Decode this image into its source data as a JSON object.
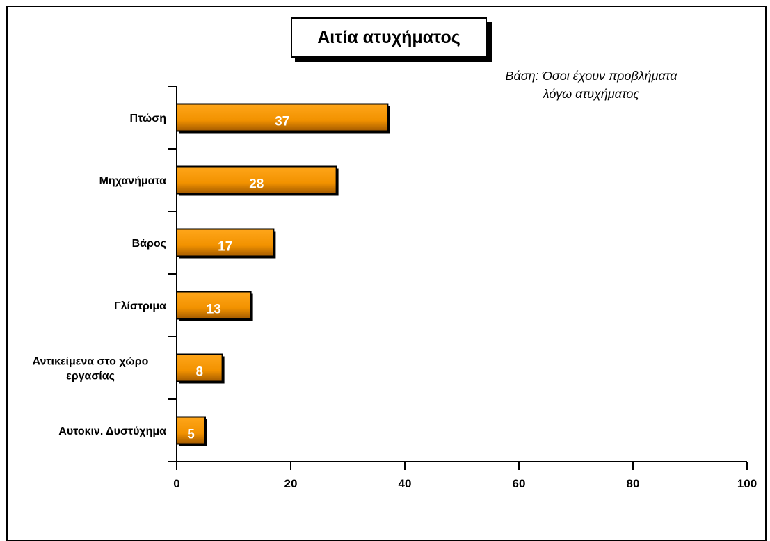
{
  "title": "Αιτία ατυχήματος",
  "subtitle": [
    "Βάση: Όσοι έχουν προβλήματα ",
    "λόγω ατυχήματος"
  ],
  "colors": {
    "bar_light": "#ffa61a",
    "bar_mid": "#f29200",
    "bar_dark": "#a35a00",
    "bar_border": "#000000",
    "data_label": "#ffffff"
  },
  "chart_data": {
    "type": "bar",
    "orientation": "horizontal",
    "title": "Αιτία ατυχήματος",
    "subtitle": "Βάση: Όσοι έχουν προβλήματα λόγω ατυχήματος",
    "categories": [
      [
        "Πτώση"
      ],
      [
        "Μηχανήματα"
      ],
      [
        "Βάρος"
      ],
      [
        "Γλίστριμα"
      ],
      [
        "Αντικείμενα στο χώρο",
        "εργασίας"
      ],
      [
        "Αυτοκιν. Δυστύχημα"
      ]
    ],
    "values": [
      37,
      28,
      17,
      13,
      8,
      5
    ],
    "data_labels": [
      "37",
      "28",
      "17",
      "13",
      "8",
      "5"
    ],
    "xlim": [
      0,
      100
    ],
    "xticks": [
      0,
      20,
      40,
      60,
      80,
      100
    ],
    "xtick_labels": [
      "0",
      "20",
      "40",
      "60",
      "80",
      "100"
    ],
    "grid": false,
    "legend": "none"
  }
}
